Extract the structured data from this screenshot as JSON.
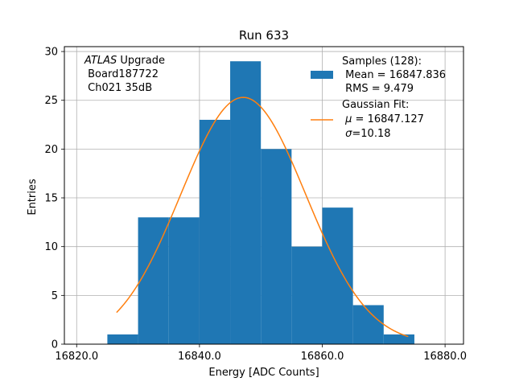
{
  "chart_data": {
    "type": "bar",
    "title": "Run 633",
    "xlabel": "Energy [ADC Counts]",
    "ylabel": "Entries",
    "xlim": [
      16818,
      16883
    ],
    "ylim": [
      0,
      30.5
    ],
    "grid": true,
    "xticks": [
      16820,
      16840,
      16860,
      16880
    ],
    "xtick_labels": [
      "16820.0",
      "16840.0",
      "16860.0",
      "16880.0"
    ],
    "yticks": [
      0,
      5,
      10,
      15,
      20,
      25,
      30
    ],
    "ytick_labels": [
      "0",
      "5",
      "10",
      "15",
      "20",
      "25",
      "30"
    ],
    "bin_edges": [
      16825,
      16830,
      16835,
      16840,
      16845,
      16850,
      16855,
      16860,
      16865,
      16870,
      16875
    ],
    "values": [
      1,
      13,
      13,
      23,
      29,
      20,
      10,
      14,
      4,
      1
    ],
    "bar_color": "#1f77b4",
    "fit": {
      "mu": 16847.127,
      "sigma": 10.18,
      "amplitude": 25.3,
      "x_range": [
        16826.5,
        16874
      ],
      "color": "#ff7f0e"
    },
    "annotation": {
      "italic": "ATLAS",
      "line1_rest": " Upgrade",
      "line2": " Board187722",
      "line3": " Ch021 35dB"
    },
    "legend": {
      "placement": "top-right",
      "samples": {
        "line1": "Samples (128):",
        "line2": " Mean = 16847.836",
        "line3": " RMS = 9.479"
      },
      "fit": {
        "line1": "Gaussian Fit:",
        "line2_sym": "μ",
        "line2_rest": " = 16847.127",
        "line3_sym": "σ",
        "line3_rest": "=10.18"
      }
    }
  }
}
